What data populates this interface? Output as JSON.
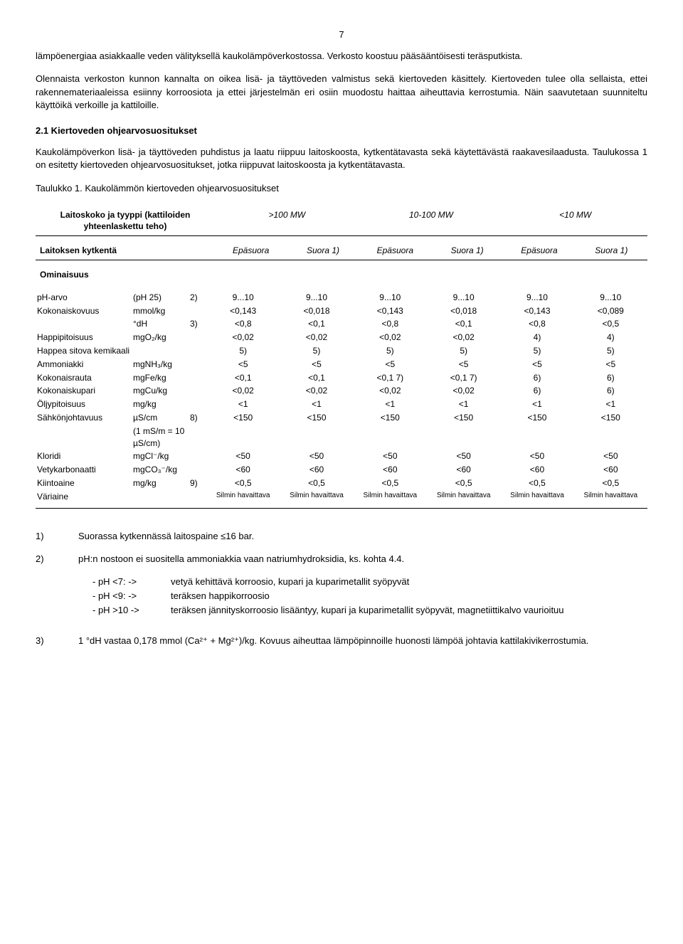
{
  "pageNumber": "7",
  "para1": "lämpöenergiaa asiakkaalle veden välityksellä kaukolämpöverkostossa. Verkosto koostuu pääsääntöisesti teräsputkista.",
  "para2": "Olennaista verkoston kunnon kannalta on oikea lisä- ja täyttöveden valmistus sekä kiertoveden käsittely. Kiertoveden tulee olla sellaista, ettei rakennemateriaaleissa esiinny korroosiota ja ettei järjestelmän eri osiin muodostu haittaa aiheuttavia kerrostumia. Näin saavutetaan suunniteltu käyttöikä verkoille ja kattiloille.",
  "sectionTitle": "2.1 Kiertoveden ohjearvosuositukset",
  "para3": "Kaukolämpöverkon lisä- ja täyttöveden puhdistus ja laatu riippuu laitoskoosta, kytkentätavasta sekä käytettävästä raakavesilaadusta. Taulukossa 1 on esitetty kiertoveden ohjearvosuositukset, jotka riippuvat laitoskoosta ja kytkentätavasta.",
  "tableCaption": "Taulukko 1. Kaukolämmön kiertoveden ohjearvosuositukset",
  "headerRow": {
    "label": "Laitoskoko ja tyyppi (kattiloiden yhteenlaskettu teho)",
    "c1": ">100  MW",
    "c2": "10-100  MW",
    "c3": "<10  MW"
  },
  "kytRow": {
    "label": "Laitoksen kytkentä",
    "ep": "Epäsuora",
    "su": "Suora   1)"
  },
  "omTitle": "Ominaisuus",
  "props": [
    {
      "name": "pH-arvo",
      "unit": "(pH 25)",
      "note": "2)",
      "v": [
        "9...10",
        "9...10",
        "9...10",
        "9...10",
        "9...10",
        "9...10"
      ]
    },
    {
      "name": "Kokonaiskovuus",
      "unit": "mmol/kg",
      "note": "",
      "v": [
        "<0,143",
        "<0,018",
        "<0,143",
        "<0,018",
        "<0,143",
        "<0,089"
      ]
    },
    {
      "name": "",
      "unit": "°dH",
      "note": "3)",
      "v": [
        "<0,8",
        "<0,1",
        "<0,8",
        "<0,1",
        "<0,8",
        "<0,5"
      ]
    },
    {
      "name": "Happipitoisuus",
      "unit": "mgO₂/kg",
      "note": "",
      "v": [
        "<0,02",
        "<0,02",
        "<0,02",
        "<0,02",
        "4)",
        "4)"
      ]
    },
    {
      "name": "Happea sitova kemikaali",
      "unit": "",
      "note": "",
      "v": [
        "5)",
        "5)",
        "5)",
        "5)",
        "5)",
        "5)"
      ]
    },
    {
      "name": "Ammoniakki",
      "unit": "mgNH₃/kg",
      "note": "",
      "v": [
        "<5",
        "<5",
        "<5",
        "<5",
        "<5",
        "<5"
      ]
    },
    {
      "name": "Kokonaisrauta",
      "unit": "mgFe/kg",
      "note": "",
      "v": [
        "<0,1",
        "<0,1",
        "<0,1   7)",
        "<0,1   7)",
        "6)",
        "6)"
      ]
    },
    {
      "name": "Kokonaiskupari",
      "unit": "mgCu/kg",
      "note": "",
      "v": [
        "<0,02",
        "<0,02",
        "<0,02",
        "<0,02",
        "6)",
        "6)"
      ]
    },
    {
      "name": "Öljypitoisuus",
      "unit": "mg/kg",
      "note": "",
      "v": [
        "<1",
        "<1",
        "<1",
        "<1",
        "<1",
        "<1"
      ]
    },
    {
      "name": "Sähkönjohtavuus",
      "unit": "µS/cm",
      "note": "8)",
      "v": [
        "<150",
        "<150",
        "<150",
        "<150",
        "<150",
        "<150"
      ]
    },
    {
      "name": "",
      "unit": "(1 mS/m = 10 µS/cm)",
      "note": "",
      "v": [
        "",
        "",
        "",
        "",
        "",
        ""
      ]
    },
    {
      "name": "Kloridi",
      "unit": "mgCl⁻/kg",
      "note": "",
      "v": [
        "<50",
        "<50",
        "<50",
        "<50",
        "<50",
        "<50"
      ]
    },
    {
      "name": "Vetykarbonaatti",
      "unit": "mgCO₃⁻/kg",
      "note": "",
      "v": [
        "<60",
        "<60",
        "<60",
        "<60",
        "<60",
        "<60"
      ]
    },
    {
      "name": "Kiintoaine",
      "unit": "mg/kg",
      "note": "9)",
      "v": [
        "<0,5",
        "<0,5",
        "<0,5",
        "<0,5",
        "<0,5",
        "<0,5"
      ]
    },
    {
      "name": "Väriaine",
      "unit": "",
      "note": "",
      "v": [
        "Silmin havaittava",
        "Silmin havaittava",
        "Silmin havaittava",
        "Silmin havaittava",
        "Silmin havaittava",
        "Silmin havaittava"
      ],
      "small": true
    }
  ],
  "notes": [
    {
      "n": "1)",
      "t": "Suorassa kytkennässä laitospaine ≤16 bar."
    },
    {
      "n": "2)",
      "t": "pH:n nostoon ei suositella ammoniakkia vaan natriumhydroksidia, ks. kohta 4.4."
    }
  ],
  "phList": [
    {
      "l": "- pH <7: ->",
      "r": "vetyä kehittävä korroosio, kupari ja kuparimetallit syöpyvät"
    },
    {
      "l": "- pH <9: ->",
      "r": "teräksen happikorroosio"
    },
    {
      "l": "- pH >10 ->",
      "r": "teräksen jännityskorroosio lisääntyy, kupari ja kuparimetallit syöpyvät, magnetiittikalvo vaurioituu"
    }
  ],
  "note3": {
    "n": "3)",
    "t": "1 °dH vastaa 0,178 mmol (Ca²⁺ + Mg²⁺)/kg. Kovuus aiheuttaa lämpöpinnoille huonosti lämpöä johtavia kattilakivikerrostumia."
  }
}
